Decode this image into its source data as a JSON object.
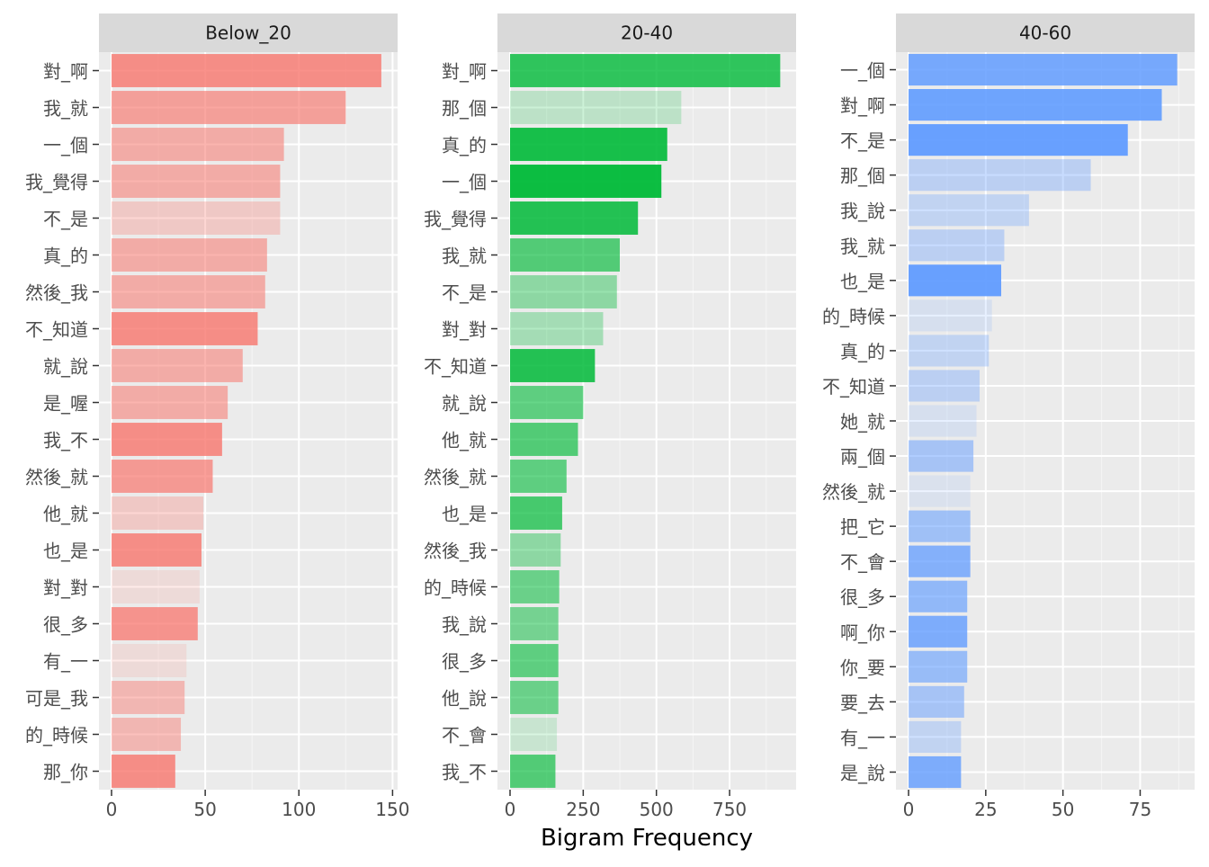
{
  "chart_data": [
    {
      "type": "bar",
      "orientation": "horizontal",
      "title": "Below_20",
      "base_color": "#f8766d",
      "xlim": [
        0,
        150
      ],
      "xticks": [
        0,
        50,
        100,
        150
      ],
      "categories": [
        "對_啊",
        "我_就",
        "一_個",
        "我_覺得",
        "不_是",
        "真_的",
        "然後_我",
        "不_知道",
        "就_說",
        "是_喔",
        "我_不",
        "然後_就",
        "他_就",
        "也_是",
        "對_對",
        "很_多",
        "有_一",
        "可是_我",
        "的_時候",
        "那_你"
      ],
      "values": [
        144,
        125,
        92,
        90,
        90,
        83,
        82,
        78,
        70,
        62,
        59,
        54,
        49,
        48,
        47,
        46,
        40,
        39,
        37,
        34
      ],
      "opacity": [
        0.8,
        0.65,
        0.55,
        0.55,
        0.3,
        0.55,
        0.55,
        0.8,
        0.55,
        0.55,
        0.8,
        0.7,
        0.3,
        0.8,
        0.15,
        0.75,
        0.15,
        0.45,
        0.45,
        0.8
      ]
    },
    {
      "type": "bar",
      "orientation": "horizontal",
      "title": "20-40",
      "base_color": "#00ba38",
      "xlim": [
        0,
        960
      ],
      "xticks": [
        0,
        250,
        500,
        750
      ],
      "categories": [
        "對_啊",
        "那_個",
        "真_的",
        "一_個",
        "我_覺得",
        "我_就",
        "不_是",
        "對_對",
        "不_知道",
        "就_說",
        "他_就",
        "然後_就",
        "也_是",
        "然後_我",
        "的_時候",
        "我_說",
        "很_多",
        "他_說",
        "不_會",
        "我_不"
      ],
      "values": [
        923,
        585,
        537,
        517,
        437,
        375,
        365,
        318,
        290,
        250,
        232,
        193,
        178,
        173,
        168,
        165,
        165,
        165,
        160,
        155
      ],
      "opacity": [
        0.8,
        0.2,
        0.9,
        0.95,
        0.85,
        0.65,
        0.4,
        0.3,
        0.85,
        0.6,
        0.65,
        0.6,
        0.7,
        0.4,
        0.55,
        0.5,
        0.6,
        0.55,
        0.15,
        0.65
      ]
    },
    {
      "type": "bar",
      "orientation": "horizontal",
      "title": "40-60",
      "base_color": "#619cff",
      "xaxis_label": "Bigram Frequency",
      "xlim": [
        0,
        91
      ],
      "xticks": [
        0,
        25,
        50,
        75
      ],
      "categories": [
        "一_個",
        "對_啊",
        "不_是",
        "那_個",
        "我_說",
        "我_就",
        "也_是",
        "的_時候",
        "真_的",
        "不_知道",
        "她_就",
        "兩_個",
        "然後_就",
        "把_它",
        "不_會",
        "很_多",
        "啊_你",
        "你_要",
        "要_去",
        "有_一",
        "是_說"
      ],
      "values": [
        87,
        82,
        71,
        59,
        39,
        31,
        30,
        27,
        26,
        23,
        22,
        21,
        20,
        20,
        20,
        19,
        19,
        19,
        18,
        17,
        17
      ],
      "opacity": [
        0.85,
        0.9,
        0.95,
        0.35,
        0.3,
        0.35,
        0.95,
        0.15,
        0.3,
        0.35,
        0.15,
        0.5,
        0.12,
        0.55,
        0.75,
        0.65,
        0.8,
        0.6,
        0.5,
        0.3,
        0.8
      ]
    }
  ]
}
